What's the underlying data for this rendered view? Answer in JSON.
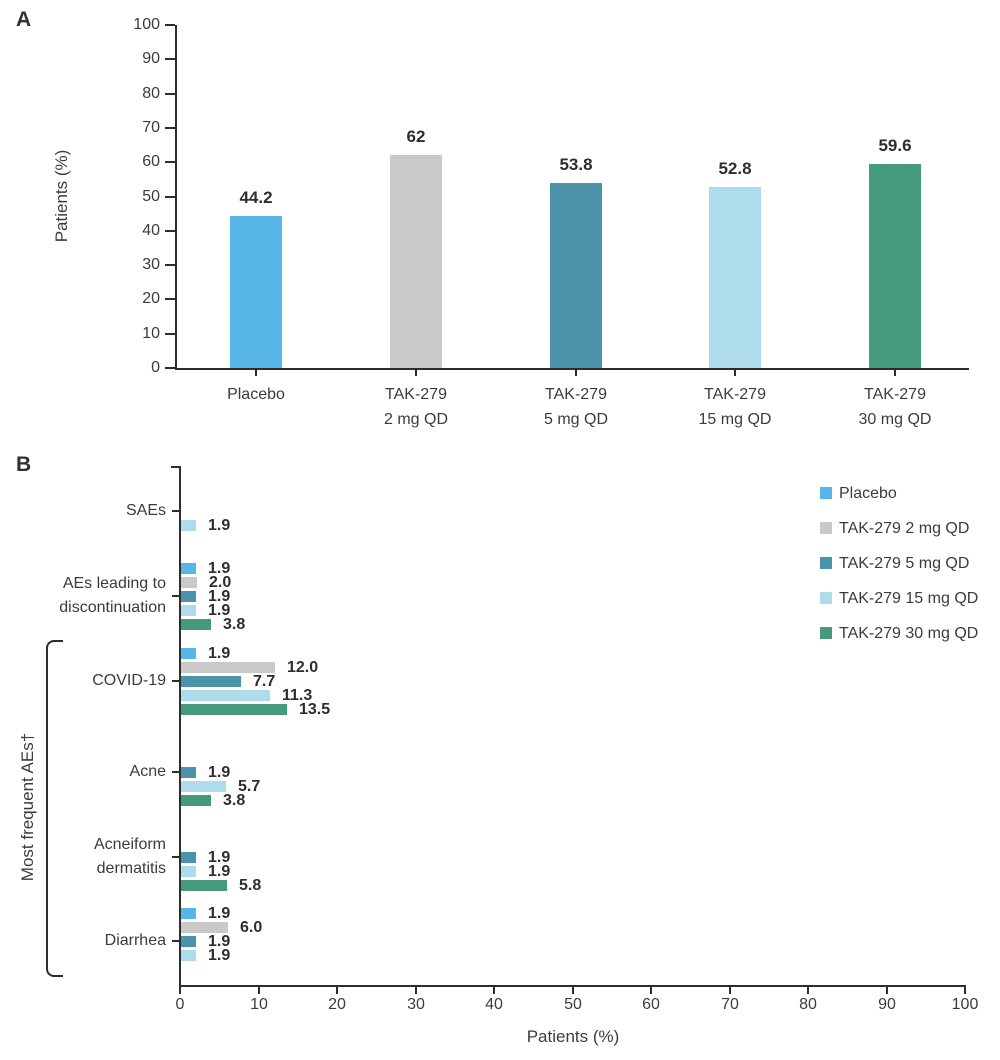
{
  "panels": {
    "A": {
      "letter": "A"
    },
    "B": {
      "letter": "B"
    }
  },
  "series": [
    {
      "name": "Placebo",
      "color": "#55b6e7"
    },
    {
      "name": "TAK-279 2 mg QD",
      "color": "#c9c9c9"
    },
    {
      "name": "TAK-279 5 mg QD",
      "color": "#4b93a9"
    },
    {
      "name": "TAK-279 15 mg QD",
      "color": "#aedcec"
    },
    {
      "name": "TAK-279 30 mg QD",
      "color": "#459a7b"
    }
  ],
  "colors": {
    "axis": "#2d2d2d",
    "text": "#3b3b3b",
    "value_text": "#2e2e2e",
    "background": "#ffffff"
  },
  "chart_data": [
    {
      "type": "bar",
      "panel": "A",
      "ylabel": "Patients (%)",
      "ylim": [
        0,
        100
      ],
      "ytick_step": 10,
      "grid": false,
      "categories": [
        "Placebo",
        "TAK-279\n2 mg QD",
        "TAK-279\n5 mg QD",
        "TAK-279\n15 mg QD",
        "TAK-279\n30 mg QD"
      ],
      "values": [
        44.2,
        62,
        53.8,
        52.8,
        59.6
      ],
      "value_labels": [
        "44.2",
        "62",
        "53.8",
        "52.8",
        "59.6"
      ]
    },
    {
      "type": "horizontal-bar",
      "panel": "B",
      "xlabel": "Patients (%)",
      "xlim": [
        0,
        100
      ],
      "xtick_step": 10,
      "grid": false,
      "legend_position": "top-right",
      "legend": [
        "Placebo",
        "TAK-279 2 mg QD",
        "TAK-279 5 mg QD",
        "TAK-279 15 mg QD",
        "TAK-279 30 mg QD"
      ],
      "groups": [
        {
          "label": "SAEs",
          "values": [
            null,
            null,
            null,
            1.9,
            null
          ],
          "value_labels": [
            null,
            null,
            null,
            "1.9",
            null
          ]
        },
        {
          "label": "AEs leading to\ndiscontinuation",
          "values": [
            1.9,
            2.0,
            1.9,
            1.9,
            3.8
          ],
          "value_labels": [
            "1.9",
            "2.0",
            "1.9",
            "1.9",
            "3.8"
          ]
        },
        {
          "label": "COVID-19",
          "values": [
            1.9,
            12.0,
            7.7,
            11.3,
            13.5
          ],
          "value_labels": [
            "1.9",
            "12.0",
            "7.7",
            "11.3",
            "13.5"
          ]
        },
        {
          "label": "Acne",
          "values": [
            null,
            null,
            1.9,
            5.7,
            3.8
          ],
          "value_labels": [
            null,
            null,
            "1.9",
            "5.7",
            "3.8"
          ]
        },
        {
          "label": "Acneiform\ndermatitis",
          "values": [
            null,
            null,
            1.9,
            1.9,
            5.8
          ],
          "value_labels": [
            null,
            null,
            "1.9",
            "1.9",
            "5.8"
          ]
        },
        {
          "label": "Diarrhea",
          "values": [
            1.9,
            6.0,
            1.9,
            1.9,
            null
          ],
          "value_labels": [
            "1.9",
            "6.0",
            "1.9",
            "1.9",
            null
          ]
        }
      ],
      "group_bracket": {
        "label": "Most frequent AEs†",
        "applies_to": [
          "COVID-19",
          "Acne",
          "Acneiform dermatitis",
          "Diarrhea"
        ]
      }
    }
  ]
}
